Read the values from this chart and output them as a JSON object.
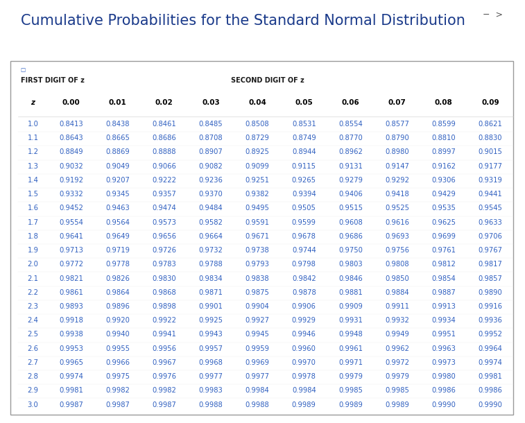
{
  "title": "Cumulative Probabilities for the Standard Normal Distribution",
  "title_color": "#1a3a8a",
  "title_fontsize": 15,
  "header1": "FIRST DIGIT OF z",
  "header2": "SECOND DIGIT OF z",
  "col_headers": [
    "z",
    "0.00",
    "0.01",
    "0.02",
    "0.03",
    "0.04",
    "0.05",
    "0.06",
    "0.07",
    "0.08",
    "0.09"
  ],
  "z_values": [
    "1.0",
    "1.1",
    "1.2",
    "1.3",
    "1.4",
    "1.5",
    "1.6",
    "1.7",
    "1.8",
    "1.9",
    "2.0",
    "2.1",
    "2.2",
    "2.3",
    "2.4",
    "2.5",
    "2.6",
    "2.7",
    "2.8",
    "2.9",
    "3.0"
  ],
  "table_data": [
    [
      "0.8413",
      "0.8438",
      "0.8461",
      "0.8485",
      "0.8508",
      "0.8531",
      "0.8554",
      "0.8577",
      "0.8599",
      "0.8621"
    ],
    [
      "0.8643",
      "0.8665",
      "0.8686",
      "0.8708",
      "0.8729",
      "0.8749",
      "0.8770",
      "0.8790",
      "0.8810",
      "0.8830"
    ],
    [
      "0.8849",
      "0.8869",
      "0.8888",
      "0.8907",
      "0.8925",
      "0.8944",
      "0.8962",
      "0.8980",
      "0.8997",
      "0.9015"
    ],
    [
      "0.9032",
      "0.9049",
      "0.9066",
      "0.9082",
      "0.9099",
      "0.9115",
      "0.9131",
      "0.9147",
      "0.9162",
      "0.9177"
    ],
    [
      "0.9192",
      "0.9207",
      "0.9222",
      "0.9236",
      "0.9251",
      "0.9265",
      "0.9279",
      "0.9292",
      "0.9306",
      "0.9319"
    ],
    [
      "0.9332",
      "0.9345",
      "0.9357",
      "0.9370",
      "0.9382",
      "0.9394",
      "0.9406",
      "0.9418",
      "0.9429",
      "0.9441"
    ],
    [
      "0.9452",
      "0.9463",
      "0.9474",
      "0.9484",
      "0.9495",
      "0.9505",
      "0.9515",
      "0.9525",
      "0.9535",
      "0.9545"
    ],
    [
      "0.9554",
      "0.9564",
      "0.9573",
      "0.9582",
      "0.9591",
      "0.9599",
      "0.9608",
      "0.9616",
      "0.9625",
      "0.9633"
    ],
    [
      "0.9641",
      "0.9649",
      "0.9656",
      "0.9664",
      "0.9671",
      "0.9678",
      "0.9686",
      "0.9693",
      "0.9699",
      "0.9706"
    ],
    [
      "0.9713",
      "0.9719",
      "0.9726",
      "0.9732",
      "0.9738",
      "0.9744",
      "0.9750",
      "0.9756",
      "0.9761",
      "0.9767"
    ],
    [
      "0.9772",
      "0.9778",
      "0.9783",
      "0.9788",
      "0.9793",
      "0.9798",
      "0.9803",
      "0.9808",
      "0.9812",
      "0.9817"
    ],
    [
      "0.9821",
      "0.9826",
      "0.9830",
      "0.9834",
      "0.9838",
      "0.9842",
      "0.9846",
      "0.9850",
      "0.9854",
      "0.9857"
    ],
    [
      "0.9861",
      "0.9864",
      "0.9868",
      "0.9871",
      "0.9875",
      "0.9878",
      "0.9881",
      "0.9884",
      "0.9887",
      "0.9890"
    ],
    [
      "0.9893",
      "0.9896",
      "0.9898",
      "0.9901",
      "0.9904",
      "0.9906",
      "0.9909",
      "0.9911",
      "0.9913",
      "0.9916"
    ],
    [
      "0.9918",
      "0.9920",
      "0.9922",
      "0.9925",
      "0.9927",
      "0.9929",
      "0.9931",
      "0.9932",
      "0.9934",
      "0.9936"
    ],
    [
      "0.9938",
      "0.9940",
      "0.9941",
      "0.9943",
      "0.9945",
      "0.9946",
      "0.9948",
      "0.9949",
      "0.9951",
      "0.9952"
    ],
    [
      "0.9953",
      "0.9955",
      "0.9956",
      "0.9957",
      "0.9959",
      "0.9960",
      "0.9961",
      "0.9962",
      "0.9963",
      "0.9964"
    ],
    [
      "0.9965",
      "0.9966",
      "0.9967",
      "0.9968",
      "0.9969",
      "0.9970",
      "0.9971",
      "0.9972",
      "0.9973",
      "0.9974"
    ],
    [
      "0.9974",
      "0.9975",
      "0.9976",
      "0.9977",
      "0.9977",
      "0.9978",
      "0.9979",
      "0.9979",
      "0.9980",
      "0.9981"
    ],
    [
      "0.9981",
      "0.9982",
      "0.9982",
      "0.9983",
      "0.9984",
      "0.9984",
      "0.9985",
      "0.9985",
      "0.9986",
      "0.9986"
    ],
    [
      "0.9987",
      "0.9987",
      "0.9987",
      "0.9988",
      "0.9988",
      "0.9989",
      "0.9989",
      "0.9989",
      "0.9990",
      "0.9990"
    ]
  ],
  "z_color": "#3060c0",
  "data_color": "#3060c0",
  "header_bold_color": "#1a1a1a",
  "bg_color": "#ffffff",
  "table_border_color": "#999999",
  "table_bg": "#ffffff",
  "title_top_icons": "−  >",
  "icon_color": "#555555"
}
